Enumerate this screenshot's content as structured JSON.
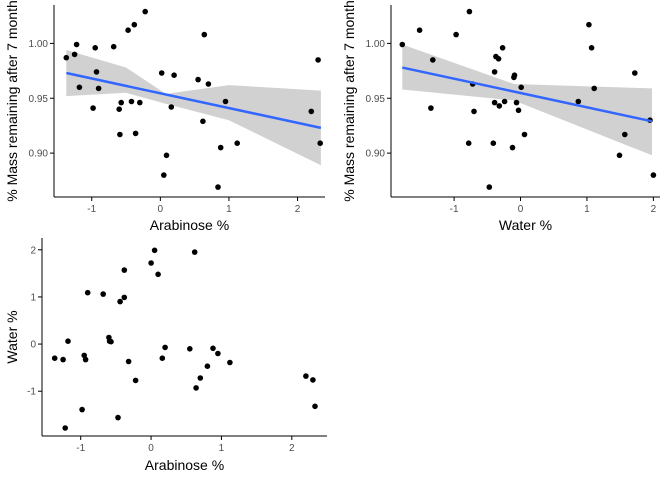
{
  "chart_data": [
    {
      "type": "scatter",
      "id": "p1",
      "xlabel": "Arabinose %",
      "ylabel": "% Mass remaining after 7 month",
      "xlim": [
        -1.55,
        2.4
      ],
      "ylim": [
        0.86,
        1.035
      ],
      "xticks": [
        -1,
        0,
        1,
        2
      ],
      "yticks": [
        0.9,
        0.95,
        1.0
      ],
      "xtick_labels": [
        "-1",
        "0",
        "1",
        "2"
      ],
      "ytick_labels": [
        "0.90",
        "0.95",
        "1.00"
      ],
      "fit": {
        "x0": -1.37,
        "y0": 0.973,
        "x1": 2.34,
        "y1": 0.923
      },
      "ribbon": {
        "lower": [
          [
            -1.37,
            0.952
          ],
          [
            -0.5,
            0.955
          ],
          [
            0.08,
            0.945
          ],
          [
            1.0,
            0.93
          ],
          [
            2.34,
            0.889
          ]
        ],
        "upper": [
          [
            -1.37,
            0.994
          ],
          [
            -0.5,
            0.978
          ],
          [
            0.08,
            0.954
          ],
          [
            1.0,
            0.962
          ],
          [
            2.34,
            0.957
          ]
        ]
      },
      "points": [
        {
          "x": -1.37,
          "y": 0.987
        },
        {
          "x": -1.25,
          "y": 0.99
        },
        {
          "x": -1.22,
          "y": 0.999
        },
        {
          "x": -1.18,
          "y": 0.96
        },
        {
          "x": -0.98,
          "y": 0.941
        },
        {
          "x": -0.95,
          "y": 0.996
        },
        {
          "x": -0.93,
          "y": 0.974
        },
        {
          "x": -0.9,
          "y": 0.959
        },
        {
          "x": -0.68,
          "y": 0.997
        },
        {
          "x": -0.6,
          "y": 0.94
        },
        {
          "x": -0.57,
          "y": 0.946
        },
        {
          "x": -0.59,
          "y": 0.917
        },
        {
          "x": -0.47,
          "y": 1.012
        },
        {
          "x": -0.42,
          "y": 0.947
        },
        {
          "x": -0.38,
          "y": 1.017
        },
        {
          "x": -0.36,
          "y": 0.918
        },
        {
          "x": -0.3,
          "y": 0.946
        },
        {
          "x": -0.22,
          "y": 1.029
        },
        {
          "x": 0.02,
          "y": 0.973
        },
        {
          "x": 0.05,
          "y": 0.88
        },
        {
          "x": 0.09,
          "y": 0.898
        },
        {
          "x": 0.16,
          "y": 0.942
        },
        {
          "x": 0.2,
          "y": 0.971
        },
        {
          "x": 0.55,
          "y": 0.967
        },
        {
          "x": 0.62,
          "y": 0.929
        },
        {
          "x": 0.64,
          "y": 1.008
        },
        {
          "x": 0.7,
          "y": 0.963
        },
        {
          "x": 0.84,
          "y": 0.869
        },
        {
          "x": 0.88,
          "y": 0.905
        },
        {
          "x": 0.95,
          "y": 0.947
        },
        {
          "x": 1.12,
          "y": 0.909
        },
        {
          "x": 2.2,
          "y": 0.938
        },
        {
          "x": 2.3,
          "y": 0.985
        },
        {
          "x": 2.33,
          "y": 0.909
        }
      ]
    },
    {
      "type": "scatter",
      "id": "p2",
      "xlabel": "Water %",
      "ylabel": "% Mass remaining after 7 month",
      "xlim": [
        -1.95,
        2.1
      ],
      "ylim": [
        0.86,
        1.035
      ],
      "xticks": [
        -1,
        0,
        1,
        2
      ],
      "yticks": [
        0.9,
        0.95,
        1.0
      ],
      "xtick_labels": [
        "-1",
        "0",
        "1",
        "2"
      ],
      "ytick_labels": [
        "0.90",
        "0.95",
        "1.00"
      ],
      "fit": {
        "x0": -1.78,
        "y0": 0.978,
        "x1": 1.98,
        "y1": 0.929
      },
      "ribbon": {
        "lower": [
          [
            -1.78,
            0.958
          ],
          [
            -0.1,
            0.948
          ],
          [
            1.98,
            0.898
          ]
        ],
        "upper": [
          [
            -1.78,
            0.999
          ],
          [
            -0.1,
            0.963
          ],
          [
            1.98,
            0.959
          ]
        ]
      },
      "points": [
        {
          "x": -1.78,
          "y": 0.999
        },
        {
          "x": -1.52,
          "y": 1.012
        },
        {
          "x": -1.35,
          "y": 0.941
        },
        {
          "x": -1.32,
          "y": 0.985
        },
        {
          "x": -0.97,
          "y": 1.008
        },
        {
          "x": -0.77,
          "y": 1.029
        },
        {
          "x": -0.78,
          "y": 0.909
        },
        {
          "x": -0.72,
          "y": 0.963
        },
        {
          "x": -0.7,
          "y": 0.938
        },
        {
          "x": -0.47,
          "y": 0.869
        },
        {
          "x": -0.39,
          "y": 0.974
        },
        {
          "x": -0.37,
          "y": 0.988
        },
        {
          "x": -0.33,
          "y": 0.986
        },
        {
          "x": -0.41,
          "y": 0.909
        },
        {
          "x": -0.39,
          "y": 0.946
        },
        {
          "x": -0.32,
          "y": 0.943
        },
        {
          "x": -0.27,
          "y": 0.996
        },
        {
          "x": -0.24,
          "y": 0.947
        },
        {
          "x": -0.12,
          "y": 0.905
        },
        {
          "x": -0.1,
          "y": 0.969
        },
        {
          "x": -0.06,
          "y": 0.946
        },
        {
          "x": -0.03,
          "y": 0.939
        },
        {
          "x": 0.01,
          "y": 0.96
        },
        {
          "x": 0.06,
          "y": 0.917
        },
        {
          "x": -0.09,
          "y": 0.971
        },
        {
          "x": 0.87,
          "y": 0.947
        },
        {
          "x": 1.03,
          "y": 1.017
        },
        {
          "x": 1.07,
          "y": 0.996
        },
        {
          "x": 1.11,
          "y": 0.959
        },
        {
          "x": 1.49,
          "y": 0.898
        },
        {
          "x": 1.57,
          "y": 0.917
        },
        {
          "x": 1.72,
          "y": 0.973
        },
        {
          "x": 1.95,
          "y": 0.93
        },
        {
          "x": 2.0,
          "y": 0.88
        }
      ]
    },
    {
      "type": "scatter",
      "id": "p3",
      "xlabel": "Arabinose %",
      "ylabel": "Water %",
      "xlim": [
        -1.55,
        2.5
      ],
      "ylim": [
        -1.95,
        2.25
      ],
      "xticks": [
        -1,
        0,
        1,
        2
      ],
      "yticks": [
        -1,
        0,
        1,
        2
      ],
      "xtick_labels": [
        "-1",
        "0",
        "1",
        "2"
      ],
      "ytick_labels": [
        "-1",
        "0",
        "1",
        "2"
      ],
      "points": [
        {
          "x": -1.37,
          "y": -0.3
        },
        {
          "x": -1.25,
          "y": -0.33
        },
        {
          "x": -1.22,
          "y": -1.78
        },
        {
          "x": -1.18,
          "y": 0.06
        },
        {
          "x": -0.98,
          "y": -1.39
        },
        {
          "x": -0.95,
          "y": -0.24
        },
        {
          "x": -0.93,
          "y": -0.33
        },
        {
          "x": -0.9,
          "y": 1.09
        },
        {
          "x": -0.68,
          "y": 1.06
        },
        {
          "x": -0.6,
          "y": 0.14
        },
        {
          "x": -0.59,
          "y": 0.06
        },
        {
          "x": -0.57,
          "y": 0.05
        },
        {
          "x": -0.47,
          "y": -1.56
        },
        {
          "x": -0.44,
          "y": 0.9
        },
        {
          "x": -0.38,
          "y": 0.99
        },
        {
          "x": -0.38,
          "y": 1.57
        },
        {
          "x": -0.32,
          "y": -0.37
        },
        {
          "x": -0.22,
          "y": -0.77
        },
        {
          "x": 0.0,
          "y": 1.72
        },
        {
          "x": 0.05,
          "y": 1.99
        },
        {
          "x": 0.1,
          "y": 1.48
        },
        {
          "x": 0.16,
          "y": -0.3
        },
        {
          "x": 0.2,
          "y": -0.07
        },
        {
          "x": 0.55,
          "y": -0.1
        },
        {
          "x": 0.62,
          "y": 1.95
        },
        {
          "x": 0.64,
          "y": -0.93
        },
        {
          "x": 0.7,
          "y": -0.72
        },
        {
          "x": 0.8,
          "y": -0.47
        },
        {
          "x": 0.88,
          "y": -0.09
        },
        {
          "x": 0.95,
          "y": -0.2
        },
        {
          "x": 1.12,
          "y": -0.39
        },
        {
          "x": 2.2,
          "y": -0.68
        },
        {
          "x": 2.3,
          "y": -0.76
        },
        {
          "x": 2.33,
          "y": -1.32
        }
      ]
    }
  ]
}
